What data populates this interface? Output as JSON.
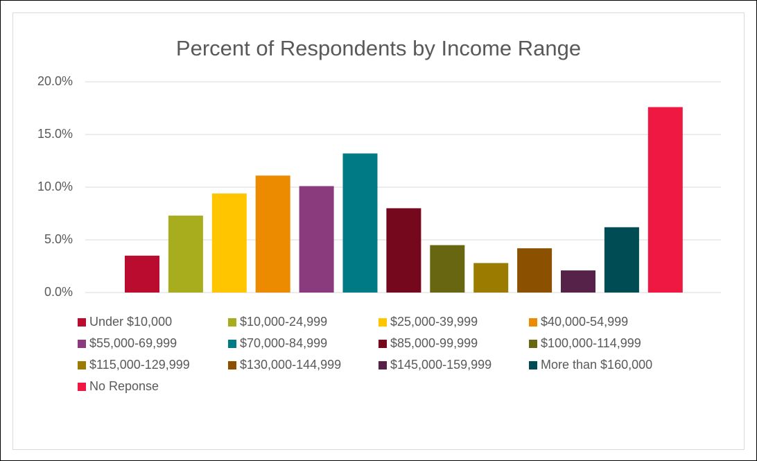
{
  "chart_data": {
    "type": "bar",
    "title": "Percent of Respondents by Income Range",
    "categories": [
      null
    ],
    "series": [
      {
        "name": "Under $10,000",
        "color": "#BA0C2F",
        "values": [
          3.5
        ]
      },
      {
        "name": "$10,000-24,999",
        "color": "#A8AD1E",
        "values": [
          7.3
        ]
      },
      {
        "name": "$25,000-39,999",
        "color": "#FFC600",
        "values": [
          9.4
        ]
      },
      {
        "name": "$40,000-54,999",
        "color": "#ED8B00",
        "values": [
          11.1
        ]
      },
      {
        "name": "$55,000-69,999",
        "color": "#8A3B7D",
        "values": [
          10.1
        ]
      },
      {
        "name": "$70,000-84,999",
        "color": "#007B86",
        "values": [
          13.2
        ]
      },
      {
        "name": "$85,000-99,999",
        "color": "#76081E",
        "values": [
          8.0
        ]
      },
      {
        "name": "$100,000-114,999",
        "color": "#686611",
        "values": [
          4.5
        ]
      },
      {
        "name": "$115,000-129,999",
        "color": "#9B7C00",
        "values": [
          2.8
        ]
      },
      {
        "name": "$130,000-144,999",
        "color": "#8B5100",
        "values": [
          4.2
        ]
      },
      {
        "name": "$145,000-159,999",
        "color": "#57224A",
        "values": [
          2.1
        ]
      },
      {
        "name": "More than $160,000",
        "color": "#004C54",
        "values": [
          6.2
        ]
      },
      {
        "name": "No Reponse",
        "color": "#EF1842",
        "values": [
          17.6
        ]
      }
    ],
    "ylim": [
      0,
      20
    ],
    "yticks": [
      {
        "value": 0,
        "label": "0.0%"
      },
      {
        "value": 5,
        "label": "5.0%"
      },
      {
        "value": 10,
        "label": "10.0%"
      },
      {
        "value": 15,
        "label": "15.0%"
      },
      {
        "value": 20,
        "label": "20.0%"
      }
    ],
    "grid": true,
    "legend": "bottom"
  }
}
